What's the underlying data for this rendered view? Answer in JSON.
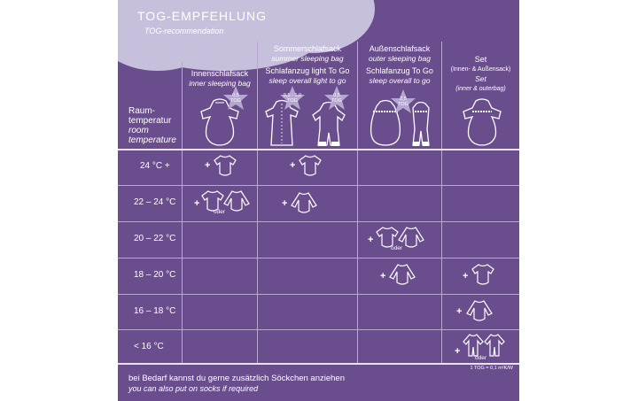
{
  "header": {
    "title": "TOG-EMPFEHLUNG",
    "subtitle": "TOG-recommendation"
  },
  "row_header": {
    "label_de_1": "Raum-",
    "label_de_2": "temperatur",
    "label_en_1": "room",
    "label_en_2": "temperature"
  },
  "columns": [
    {
      "de": "Innenschlafsack",
      "en": "inner sleeping bag"
    },
    {
      "de": "Sommerschlafsack",
      "en": "summer sleeping bag",
      "de2": "Schlafanzug light To Go",
      "en2": "sleep overall light to go"
    },
    {
      "de": "Außenschlafsack",
      "en": "outer sleeping bag",
      "de2": "Schlafanzug To Go",
      "en2": "sleep overall to go"
    },
    {
      "de": "Set",
      "de_sub": "(Innen- & Außensack)",
      "en": "Set",
      "en_sub": "(inner & outerbag)"
    }
  ],
  "tog_badges": [
    {
      "value": "0,5",
      "unit": "TOG"
    },
    {
      "value": "0,5 - 1,0",
      "unit": "TOG"
    },
    {
      "value": "0,5",
      "unit": "TOG"
    },
    {
      "value": "2,5",
      "unit": "TOG"
    }
  ],
  "rows": [
    {
      "temp": "24 °C +"
    },
    {
      "temp": "22 – 24 °C"
    },
    {
      "temp": "20 – 22 °C"
    },
    {
      "temp": "18 – 20 °C"
    },
    {
      "temp": "16 – 18 °C"
    },
    {
      "temp": "< 16 °C"
    }
  ],
  "symbols": {
    "plus": "+",
    "or": "oder"
  },
  "footer": {
    "note_de": "bei Bedarf kannst du gerne zusätzlich Söckchen anziehen",
    "note_en": "you can also put on socks if required",
    "tog_unit": "1 TOG = 0,1 m²K/W"
  },
  "colors": {
    "background": "#6a4d8c",
    "cloud": "#c7c0dc",
    "star": "#b5a8d0",
    "lines": "#b9a9d2"
  }
}
